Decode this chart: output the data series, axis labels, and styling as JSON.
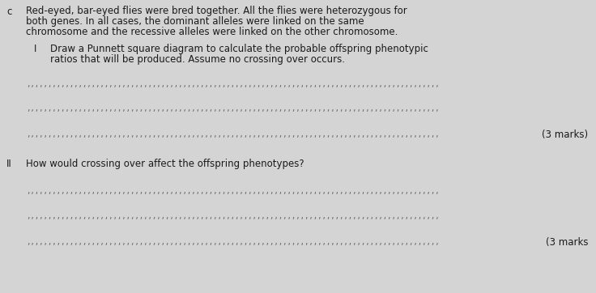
{
  "bg_color": "#d4d4d4",
  "text_color": "#1a1a1a",
  "label_c": "c",
  "main_text_line1": "Red-eyed, bar-eyed flies were bred together. All the flies were heterozygous for",
  "main_text_line2": "both genes. In all cases, the dominant alleles were linked on the same",
  "main_text_line3": "chromosome and the recessive alleles were linked on the other chromosome.",
  "part_i_label": "I",
  "part_i_text_line1": "Draw a Punnett square diagram to calculate the probable offspring phenotypic",
  "part_i_text_line2": "ratios that will be produced. Assume no crossing over occurs.",
  "marks_i": "(3 marks)",
  "part_ii_label": "II",
  "part_ii_text": "How would crossing over affect the offspring phenotypes?",
  "marks_ii": "(3 marks",
  "dot_char": ",",
  "dot_count": 95,
  "dot_fontsize": 6.5,
  "main_fontsize": 8.5,
  "label_fontsize": 8.5
}
